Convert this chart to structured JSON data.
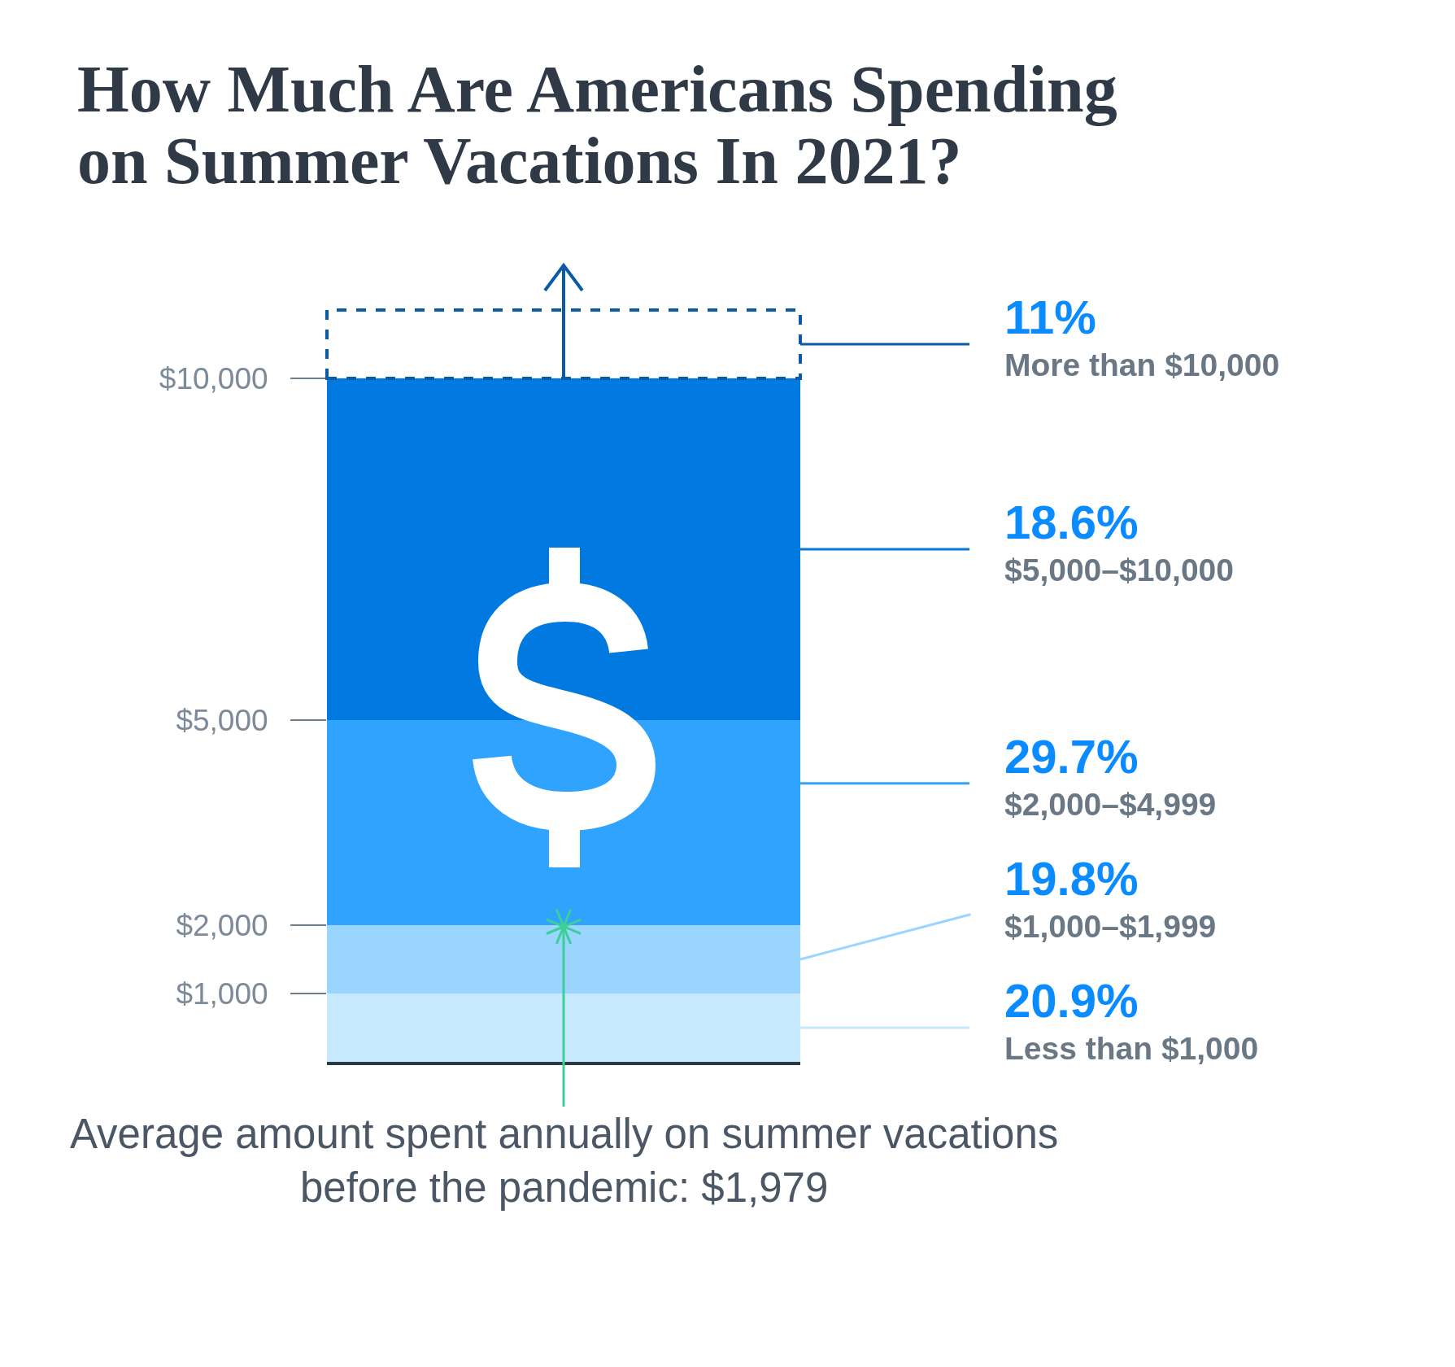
{
  "chart_data": {
    "type": "bar",
    "title": "How Much Are Americans Spending on Summer Vacations In 2021?",
    "categories": [
      null
    ],
    "stacked": true,
    "tick_labels": "y",
    "series": [
      {
        "name": "Less than $1,000",
        "color": "#c6e9fe",
        "values": [
          1000
        ]
      },
      {
        "name": "$1,000–$1,999",
        "color": "#99d5fe",
        "values": [
          1000
        ]
      },
      {
        "name": "$2,000–$4,999",
        "color": "#2fa3fe",
        "values": [
          3000
        ]
      },
      {
        "name": "$5,000–$10,000",
        "color": "#0079e1",
        "values": [
          5000
        ]
      },
      {
        "name": "More than $10,000",
        "color": "#0b5aa6",
        "values": [
          1000
        ],
        "line_style": "dashed"
      },
      {
        "type": "scatter",
        "color": "#3ccf97",
        "values": [
          1979
        ],
        "marker": "cross"
      }
    ],
    "ylim": [
      0,
      11000
    ],
    "yticks": [
      {
        "value": 1000,
        "label": "$1,000"
      },
      {
        "value": 2000,
        "label": "$2,000"
      },
      {
        "value": 5000,
        "label": "$5,000"
      },
      {
        "value": 10000,
        "label": "$10,000"
      }
    ],
    "annotations": [
      "11%",
      "18.6%",
      "29.7%",
      "19.8%",
      "20.9%",
      {
        "text": "Average amount spent annually on summer vacations before the pandemic: $1,979",
        "y": 1979
      }
    ]
  }
}
